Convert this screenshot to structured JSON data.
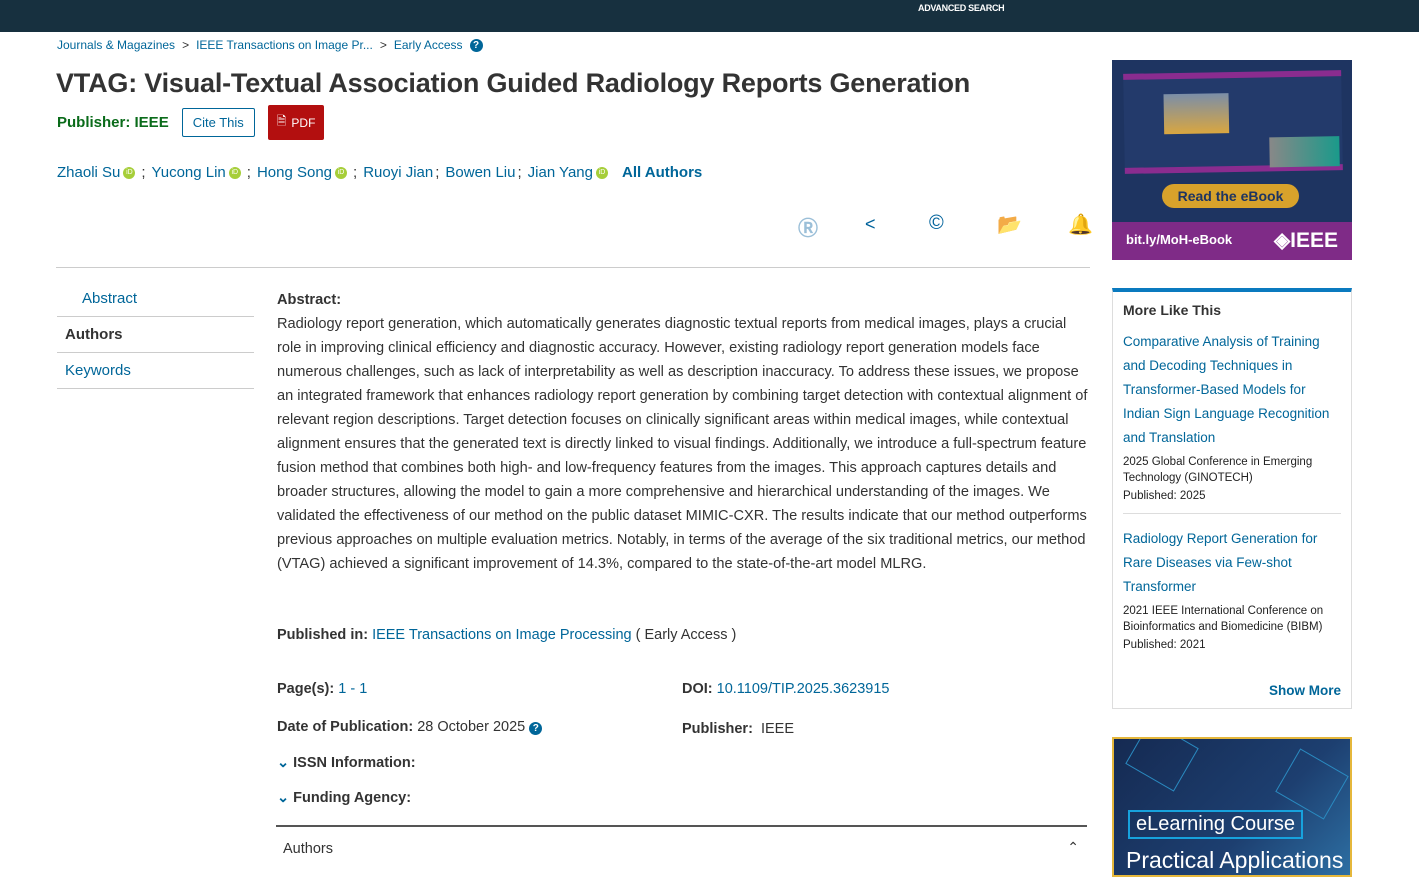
{
  "header": {
    "advanced_search": "ADVANCED SEARCH"
  },
  "breadcrumb": [
    "Journals & Magazines",
    "IEEE Transactions on Image Pr...",
    "Early Access"
  ],
  "title": "VTAG: Visual-Textual Association Guided Radiology Reports Generation",
  "publisher_label": "Publisher:  IEEE",
  "cite_label": "Cite This",
  "pdf_label": "PDF",
  "authors": [
    "Zhaoli Su",
    "Yucong Lin",
    "Hong Song",
    "Ruoyi Jian",
    "Bowen Liu",
    "Jian Yang"
  ],
  "all_authors": "All Authors",
  "nav": [
    "Abstract",
    "Authors",
    "Keywords"
  ],
  "abstract": {
    "heading": "Abstract:",
    "text": "Radiology report generation, which automatically generates diagnostic textual reports from medical images, plays a crucial role in improving clinical efficiency and diagnostic accuracy. However, existing radiology report generation models face numerous challenges, such as lack of interpretability as well as description inaccuracy. To address these issues, we propose an integrated framework that enhances radiology report generation by combining target detection with contextual alignment of relevant region descriptions. Target detection focuses on clinically significant areas within medical images, while contextual alignment ensures that the generated text is directly linked to visual findings. Additionally, we introduce a full-spectrum feature fusion method that combines both high- and low-frequency features from the images. This approach captures details and broader structures, allowing the model to gain a more comprehensive and hierarchical understanding of the images. We validated the effectiveness of our method on the public dataset MIMIC-CXR. The results indicate that our method outperforms previous approaches on multiple evaluation metrics. Notably, in terms of the average of the six traditional metrics, our method (VTAG) achieved a significant improvement of 14.3%, compared to the state-of-the-art model MLRG."
  },
  "meta": {
    "published_in_label": "Published in:",
    "published_in": "IEEE Transactions on Image Processing",
    "published_in_suffix": "( Early Access )",
    "pages_label": "Page(s):",
    "pages": "1 - 1",
    "doi_label": "DOI:",
    "doi": "10.1109/TIP.2025.3623915",
    "date_label": "Date of Publication:",
    "date": "28 October 2025",
    "publisher_label": "Publisher:",
    "publisher": "IEEE",
    "issn": "ISSN Information:",
    "funding": "Funding Agency:"
  },
  "authors_section": "Authors",
  "ad1": {
    "button": "Read the eBook",
    "url": "bit.ly/MoH-eBook",
    "brand": "IEEE"
  },
  "more_like_this": {
    "title": "More Like This",
    "items": [
      {
        "title": "Comparative Analysis of Training and Decoding Techniques in Transformer-Based Models for Indian Sign Language Recognition and Translation",
        "venue": "2025 Global Conference in Emerging Technology (GINOTECH)",
        "published": "Published: 2025"
      },
      {
        "title": "Radiology Report Generation for Rare Diseases via Few-shot Transformer",
        "venue": "2021 IEEE International Conference on Bioinformatics and Biomedicine (BIBM)",
        "published": "Published: 2021"
      }
    ],
    "show_more": "Show More"
  },
  "ad2": {
    "label": "eLearning Course",
    "title": "Practical Applications"
  }
}
